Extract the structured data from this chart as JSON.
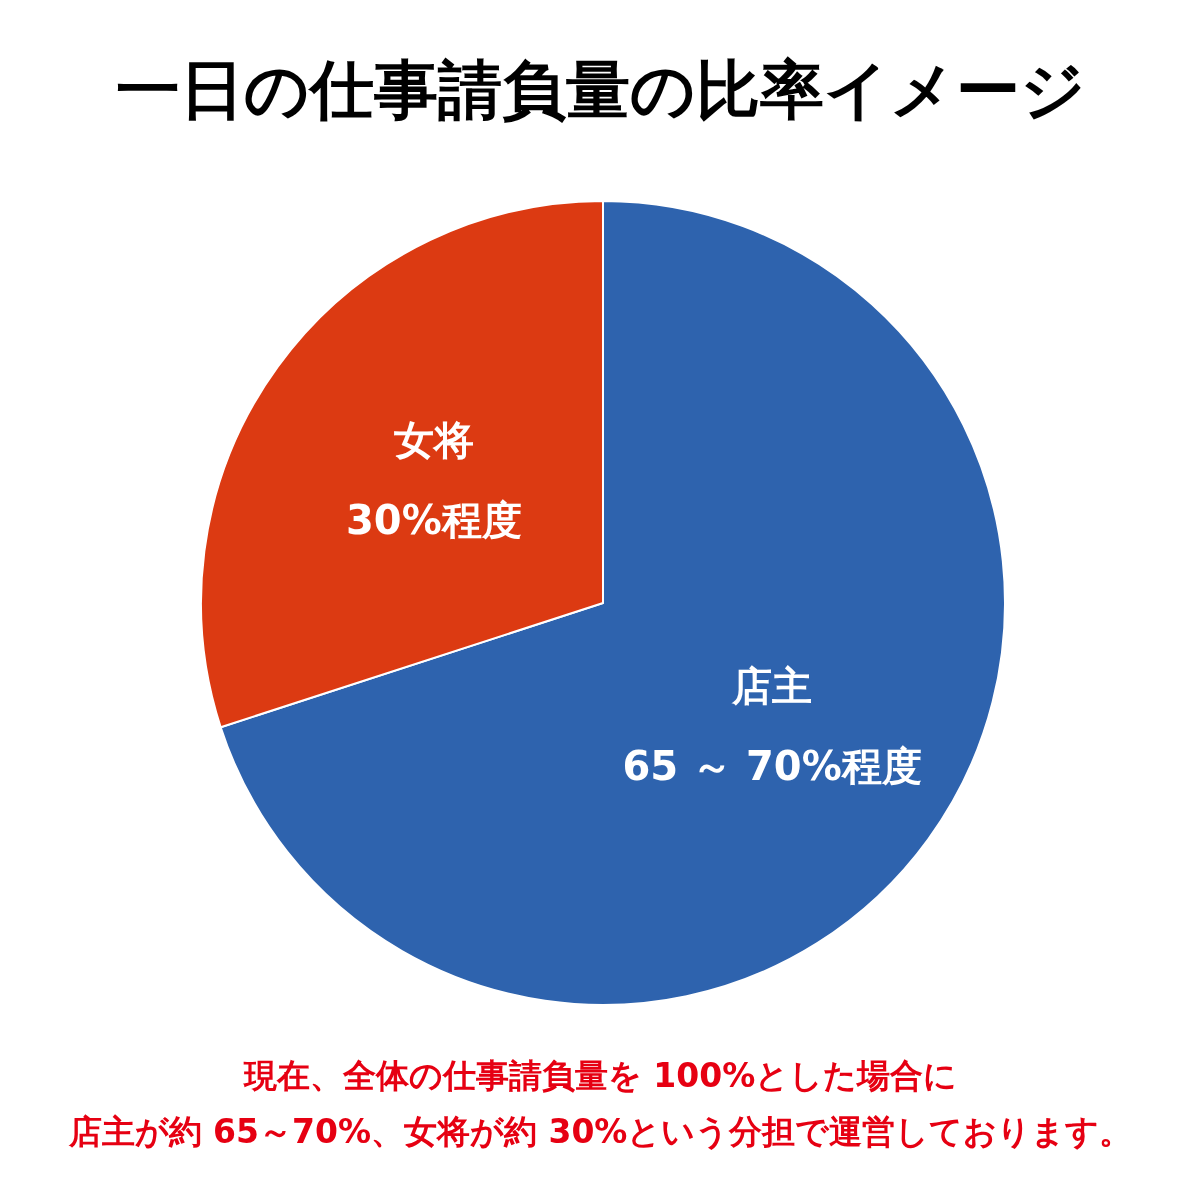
{
  "chart_data": {
    "type": "pie",
    "title": "一日の仕事請負量の比率イメージ",
    "categories": [
      "店主",
      "女将"
    ],
    "values": [
      70,
      30
    ],
    "value_labels": [
      "65 ～ 70%程度",
      "30%程度"
    ],
    "colors": [
      "#2e63ae",
      "#dc3a12"
    ],
    "annotations": [
      "現在、全体の仕事請負量を 100%とした場合に",
      "店主が約 65～70%、女将が約 30%という分担で運営しております。"
    ]
  }
}
